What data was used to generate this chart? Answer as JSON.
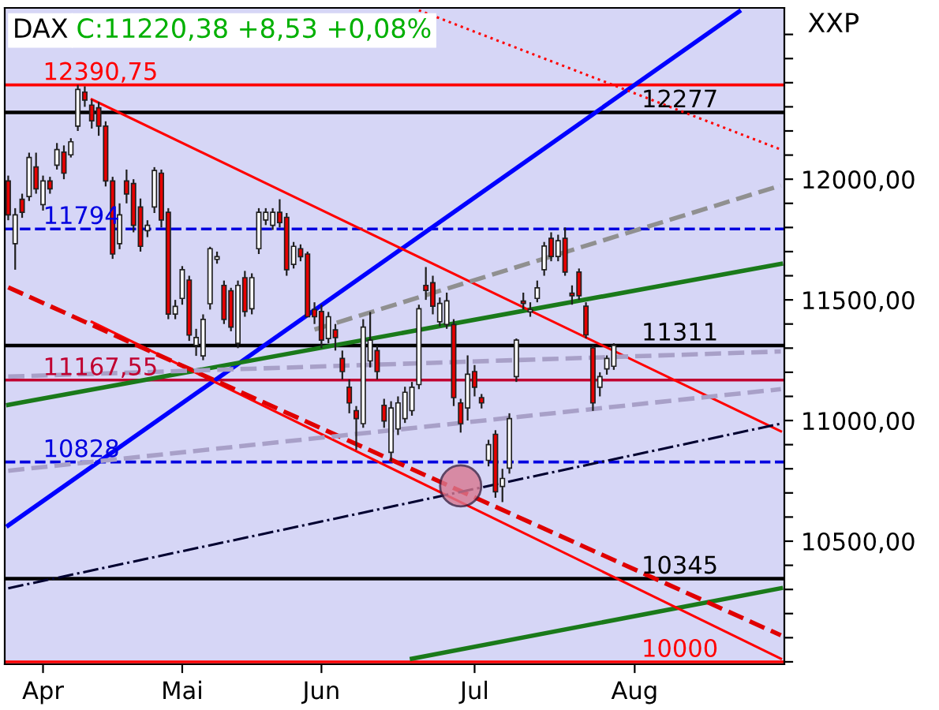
{
  "chart_data": {
    "type": "candlestick",
    "title": "DAX",
    "subtitle": "C:11220,38 +8,53 +0,08%",
    "annotations": [
      "XXP"
    ],
    "categories": [
      null,
      null,
      null,
      null,
      null,
      "Apr",
      null,
      null,
      null,
      null,
      null,
      null,
      null,
      null,
      null,
      null,
      null,
      null,
      null,
      null,
      null,
      null,
      null,
      null,
      null,
      "Mai",
      null,
      null,
      null,
      null,
      null,
      null,
      null,
      null,
      null,
      null,
      null,
      null,
      null,
      null,
      null,
      null,
      null,
      null,
      null,
      "Jun",
      null,
      null,
      null,
      null,
      null,
      null,
      null,
      null,
      null,
      null,
      null,
      null,
      null,
      null,
      null,
      null,
      null,
      null,
      null,
      null,
      null,
      "Jul",
      null,
      null,
      null,
      null,
      null,
      null,
      null,
      null,
      null,
      null,
      null,
      null,
      null,
      null,
      null,
      null,
      null,
      null,
      null,
      null,
      null,
      null,
      "Aug",
      null,
      null,
      null,
      null,
      null,
      null,
      null,
      null,
      null,
      null,
      null,
      null,
      null,
      null,
      null,
      null,
      null,
      null,
      null,
      null,
      null
    ],
    "ohlc": [
      [
        11993,
        12015,
        11830,
        11852
      ],
      [
        11733,
        11880,
        11625,
        11852
      ],
      [
        11917,
        11940,
        11840,
        11863
      ],
      [
        11928,
        12110,
        11910,
        12090
      ],
      [
        12051,
        12110,
        11940,
        11960
      ],
      [
        11895,
        12015,
        11870,
        11993
      ],
      [
        11993,
        12010,
        11940,
        11960
      ],
      [
        12058,
        12150,
        12040,
        12123
      ],
      [
        12112,
        12140,
        12000,
        12025
      ],
      [
        12101,
        12170,
        12090,
        12155
      ],
      [
        12220,
        12390.75,
        12200,
        12372
      ],
      [
        12361,
        12385,
        12300,
        12328
      ],
      [
        12307,
        12330,
        12210,
        12242
      ],
      [
        12296,
        12320,
        12180,
        12220
      ],
      [
        12220,
        12240,
        11970,
        11993
      ],
      [
        11993,
        12010,
        11670,
        11690
      ],
      [
        11733,
        11900,
        11710,
        11852
      ],
      [
        11993,
        12040,
        11900,
        11939
      ],
      [
        11982,
        12000,
        11780,
        11809
      ],
      [
        11885,
        11920,
        11700,
        11722
      ],
      [
        11787,
        11830,
        11760,
        11809
      ],
      [
        11885,
        12050,
        11860,
        12036
      ],
      [
        12025,
        12040,
        11800,
        11831
      ],
      [
        11863,
        11880,
        11420,
        11441
      ],
      [
        11441,
        11500,
        11420,
        11473
      ],
      [
        11506,
        11640,
        11480,
        11625
      ],
      [
        11582,
        11600,
        11330,
        11354
      ],
      [
        11311,
        11380,
        11268,
        11344
      ],
      [
        11268,
        11440,
        11250,
        11419
      ],
      [
        11484,
        11720,
        11460,
        11712
      ],
      [
        11668,
        11700,
        11650,
        11679
      ],
      [
        11560,
        11580,
        11400,
        11419
      ],
      [
        11538,
        11550,
        11370,
        11387
      ],
      [
        11320,
        11580,
        11300,
        11560
      ],
      [
        11592,
        11620,
        11430,
        11452
      ],
      [
        11463,
        11610,
        11440,
        11592
      ],
      [
        11712,
        11880,
        11690,
        11863
      ],
      [
        11831,
        11880,
        11810,
        11863
      ],
      [
        11809,
        11880,
        11790,
        11863
      ],
      [
        11863,
        11917,
        11800,
        11820
      ],
      [
        11842,
        11860,
        11600,
        11625
      ],
      [
        11647,
        11740,
        11630,
        11722
      ],
      [
        11712,
        11730,
        11660,
        11679
      ],
      [
        11690,
        11700,
        11430,
        11430
      ],
      [
        11460,
        11490,
        11400,
        11430
      ],
      [
        11452,
        11480,
        11300,
        11333
      ],
      [
        11340,
        11450,
        11320,
        11430
      ],
      [
        11376,
        11400,
        11290,
        11344
      ],
      [
        11257,
        11290,
        11170,
        11203
      ],
      [
        11138,
        11170,
        11030,
        11073
      ],
      [
        11041,
        11060,
        10878,
        11008
      ],
      [
        10987,
        11420,
        10970,
        11387
      ],
      [
        11247,
        11450,
        11220,
        11333
      ],
      [
        11290,
        11310,
        11170,
        11203
      ],
      [
        11063,
        11090,
        10970,
        10998
      ],
      [
        10868,
        11080,
        10830,
        11052
      ],
      [
        10965,
        11100,
        10940,
        11073
      ],
      [
        11008,
        11140,
        10990,
        11117
      ],
      [
        11041,
        11160,
        11020,
        11138
      ],
      [
        11149,
        11480,
        11130,
        11463
      ],
      [
        11560,
        11636,
        11500,
        11539
      ],
      [
        11571,
        11600,
        11440,
        11474
      ],
      [
        11409,
        11510,
        11390,
        11485
      ],
      [
        11398,
        11530,
        11380,
        11496
      ],
      [
        11398,
        11420,
        11060,
        11095
      ],
      [
        11073,
        11090,
        10950,
        10987
      ],
      [
        11052,
        11270,
        11000,
        11192
      ],
      [
        11203,
        11230,
        11100,
        11138
      ],
      [
        11095,
        11110,
        11050,
        11073
      ],
      [
        10835,
        10920,
        10810,
        10900
      ],
      [
        10943,
        10960,
        10680,
        10705
      ],
      [
        10727,
        10800,
        10662,
        10760
      ],
      [
        10803,
        11030,
        10780,
        11008
      ],
      [
        11182,
        11340,
        11160,
        11333
      ],
      [
        11495,
        11530,
        11460,
        11485
      ],
      [
        11450,
        11490,
        11430,
        11460
      ],
      [
        11506,
        11580,
        11490,
        11550
      ],
      [
        11625,
        11740,
        11600,
        11723
      ],
      [
        11755,
        11780,
        11660,
        11680
      ],
      [
        11680,
        11770,
        11660,
        11745
      ],
      [
        11755,
        11800,
        11600,
        11615
      ],
      [
        11528,
        11560,
        11480,
        11517
      ],
      [
        11615,
        11630,
        11500,
        11517
      ],
      [
        11474,
        11490,
        11340,
        11355
      ],
      [
        11301,
        11310,
        11040,
        11073
      ],
      [
        11138,
        11200,
        11100,
        11182
      ],
      [
        11214,
        11270,
        11190,
        11257
      ],
      [
        11225,
        11320,
        11210,
        11311
      ],
      null,
      null,
      null,
      null,
      null,
      null,
      null,
      null,
      null,
      null,
      null,
      null,
      null,
      null,
      null,
      null,
      null,
      null,
      null,
      null,
      null,
      null,
      null,
      null
    ],
    "colors": [
      "#e60000",
      "#ffffff",
      "#e60000",
      "#ffffff",
      "#e60000",
      "#ffffff",
      "#e60000",
      "#ffffff",
      "#e60000",
      "#ffffff",
      "#ffffff",
      "#e60000",
      "#e60000",
      "#e60000",
      "#e60000",
      "#e60000",
      "#ffffff",
      "#e60000",
      "#e60000",
      "#e60000",
      "#ffffff",
      "#ffffff",
      "#e60000",
      "#e60000",
      "#ffffff",
      "#ffffff",
      "#e60000",
      "#ffffff",
      "#ffffff",
      "#ffffff",
      "#ffffff",
      "#e60000",
      "#e60000",
      "#ffffff",
      "#e60000",
      "#ffffff",
      "#ffffff",
      "#ffffff",
      "#ffffff",
      "#e60000",
      "#e60000",
      "#ffffff",
      "#e60000",
      "#e60000",
      "#e60000",
      "#e60000",
      "#ffffff",
      "#e60000",
      "#e60000",
      "#e60000",
      "#e60000",
      "#ffffff",
      "#ffffff",
      "#e60000",
      "#e60000",
      "#ffffff",
      "#ffffff",
      "#ffffff",
      "#ffffff",
      "#ffffff",
      "#e60000",
      "#e60000",
      "#ffffff",
      "#ffffff",
      "#e60000",
      "#e60000",
      "#ffffff",
      "#e60000",
      "#e60000",
      "#ffffff",
      "#e60000",
      "#ffffff",
      "#ffffff",
      "#ffffff",
      "#e60000",
      "#ffffff",
      "#ffffff",
      "#ffffff",
      "#e60000",
      "#ffffff",
      "#e60000",
      "#e60000",
      "#e60000",
      "#e60000",
      "#e60000",
      "#ffffff",
      "#ffffff",
      "#ffffff",
      null,
      null,
      null,
      null,
      null,
      null,
      null,
      null,
      null,
      null,
      null,
      null,
      null,
      null,
      null,
      null,
      null,
      null,
      null,
      null,
      null,
      null,
      null,
      null
    ],
    "series": [
      {
        "type": "line",
        "values": [
          10565,
          null,
          null,
          null,
          null,
          null,
          null,
          null,
          null,
          null,
          null,
          null,
          null,
          null,
          null,
          null,
          null,
          null,
          null,
          null,
          null,
          null,
          null,
          null,
          null,
          null,
          null,
          null,
          null,
          null,
          null,
          null,
          null,
          null,
          null,
          null,
          null,
          null,
          null,
          null,
          null,
          null,
          null,
          null,
          null,
          null,
          null,
          null,
          null,
          null,
          null,
          null,
          null,
          null,
          null,
          null,
          null,
          null,
          null,
          null,
          null,
          null,
          null,
          null,
          null,
          null,
          null,
          null,
          null,
          null,
          null,
          null,
          null,
          null,
          null,
          null,
          null,
          null,
          null,
          null,
          null,
          null,
          null,
          null,
          null,
          null,
          null,
          null,
          null,
          null,
          null,
          null,
          null,
          null,
          null,
          null,
          null,
          null,
          null,
          null,
          null,
          null,
          null,
          null,
          null,
          12695,
          null,
          null,
          null,
          null,
          null,
          null
        ],
        "color": "#0000ff",
        "line_style": "solid"
      },
      {
        "type": "line",
        "values": [
          11065,
          null,
          null,
          null,
          null,
          null,
          null,
          null,
          null,
          null,
          null,
          null,
          null,
          null,
          null,
          null,
          null,
          null,
          null,
          null,
          null,
          null,
          null,
          null,
          null,
          null,
          null,
          null,
          null,
          null,
          null,
          null,
          null,
          null,
          null,
          null,
          null,
          null,
          null,
          null,
          null,
          null,
          null,
          null,
          null,
          null,
          null,
          null,
          null,
          null,
          null,
          null,
          null,
          null,
          null,
          null,
          null,
          null,
          null,
          null,
          null,
          null,
          null,
          null,
          null,
          null,
          null,
          null,
          null,
          null,
          null,
          null,
          null,
          null,
          null,
          null,
          null,
          null,
          null,
          null,
          null,
          null,
          null,
          null,
          null,
          null,
          null,
          null,
          null,
          null,
          null,
          null,
          null,
          null,
          null,
          null,
          null,
          null,
          null,
          null,
          null,
          null,
          null,
          null,
          null,
          null,
          null,
          null,
          null,
          null,
          null,
          11649
        ],
        "color": "#1a7a1a",
        "line_style": "solid"
      },
      {
        "type": "line",
        "values": [
          null,
          null,
          null,
          null,
          null,
          null,
          null,
          null,
          null,
          null,
          null,
          null,
          null,
          null,
          null,
          null,
          null,
          null,
          null,
          null,
          null,
          null,
          null,
          null,
          null,
          null,
          null,
          null,
          null,
          null,
          null,
          null,
          null,
          null,
          null,
          null,
          null,
          null,
          null,
          null,
          null,
          null,
          null,
          null,
          null,
          null,
          null,
          null,
          null,
          null,
          null,
          null,
          null,
          null,
          null,
          null,
          null,
          null,
          10013,
          null,
          null,
          null,
          null,
          null,
          null,
          null,
          null,
          null,
          null,
          null,
          null,
          null,
          null,
          null,
          null,
          null,
          null,
          null,
          null,
          null,
          null,
          null,
          null,
          null,
          null,
          null,
          null,
          null,
          null,
          null,
          null,
          null,
          null,
          null,
          null,
          null,
          null,
          null,
          null,
          null,
          null,
          null,
          null,
          null,
          null,
          null,
          null,
          null,
          null,
          null,
          null,
          10305
        ],
        "color": "#1a7a1a",
        "line_style": "solid"
      },
      {
        "type": "line",
        "values": [
          null,
          null,
          null,
          null,
          null,
          null,
          null,
          null,
          null,
          null,
          null,
          null,
          12331,
          null,
          null,
          null,
          null,
          null,
          null,
          null,
          null,
          null,
          null,
          null,
          null,
          null,
          null,
          null,
          null,
          null,
          null,
          null,
          null,
          null,
          null,
          null,
          null,
          null,
          null,
          null,
          null,
          null,
          null,
          null,
          null,
          null,
          null,
          null,
          null,
          null,
          null,
          null,
          null,
          null,
          null,
          null,
          null,
          null,
          null,
          null,
          null,
          null,
          null,
          null,
          null,
          null,
          null,
          null,
          null,
          null,
          null,
          null,
          null,
          null,
          null,
          null,
          null,
          null,
          null,
          null,
          null,
          null,
          null,
          null,
          null,
          null,
          null,
          null,
          null,
          null,
          null,
          null,
          null,
          null,
          null,
          null,
          null,
          null,
          null,
          null,
          null,
          null,
          null,
          null,
          null,
          null,
          null,
          null,
          null,
          null,
          null,
          10955
        ],
        "color": "#ff0000",
        "line_style": "solid"
      },
      {
        "type": "line",
        "values": [
          null,
          null,
          null,
          null,
          null,
          null,
          null,
          null,
          null,
          null,
          null,
          null,
          11409,
          null,
          null,
          null,
          null,
          null,
          null,
          null,
          null,
          null,
          null,
          null,
          null,
          null,
          null,
          null,
          null,
          null,
          null,
          null,
          null,
          null,
          null,
          null,
          null,
          null,
          null,
          null,
          null,
          null,
          null,
          null,
          null,
          null,
          null,
          null,
          null,
          null,
          null,
          null,
          null,
          null,
          null,
          null,
          null,
          null,
          null,
          null,
          null,
          null,
          null,
          null,
          null,
          null,
          null,
          null,
          null,
          null,
          null,
          null,
          null,
          null,
          null,
          null,
          null,
          null,
          null,
          null,
          null,
          null,
          null,
          null,
          null,
          null,
          null,
          null,
          null,
          null,
          null,
          null,
          null,
          null,
          null,
          null,
          null,
          null,
          null,
          null,
          null,
          null,
          null,
          null,
          null,
          null,
          null,
          null,
          null,
          null,
          null,
          10013
        ],
        "color": "#ff0000",
        "line_style": "solid"
      },
      {
        "type": "line",
        "values": [
          11552,
          null,
          null,
          null,
          null,
          null,
          null,
          null,
          null,
          null,
          null,
          null,
          null,
          null,
          null,
          null,
          null,
          null,
          null,
          null,
          null,
          null,
          null,
          null,
          null,
          null,
          null,
          null,
          null,
          null,
          null,
          null,
          null,
          null,
          null,
          null,
          null,
          null,
          null,
          null,
          null,
          null,
          null,
          null,
          null,
          null,
          null,
          null,
          null,
          null,
          null,
          null,
          null,
          null,
          null,
          null,
          null,
          null,
          null,
          null,
          null,
          null,
          null,
          null,
          null,
          null,
          null,
          null,
          null,
          null,
          null,
          null,
          null,
          null,
          null,
          null,
          null,
          null,
          null,
          null,
          null,
          null,
          null,
          null,
          null,
          null,
          null,
          null,
          null,
          null,
          null,
          null,
          null,
          null,
          null,
          null,
          null,
          null,
          null,
          null,
          null,
          null,
          null,
          null,
          null,
          null,
          null,
          null,
          null,
          null,
          null,
          10110
        ],
        "color": "#e00000",
        "line_style": "dashed"
      },
      {
        "type": "line",
        "values": [
          null,
          null,
          null,
          null,
          null,
          null,
          null,
          null,
          null,
          null,
          null,
          null,
          null,
          null,
          null,
          null,
          null,
          null,
          null,
          null,
          null,
          null,
          null,
          null,
          null,
          null,
          null,
          null,
          null,
          null,
          null,
          null,
          null,
          null,
          null,
          null,
          null,
          null,
          null,
          null,
          null,
          null,
          null,
          null,
          null,
          null,
          null,
          null,
          null,
          null,
          null,
          null,
          null,
          null,
          null,
          null,
          null,
          null,
          null,
          12700,
          null,
          null,
          null,
          null,
          null,
          null,
          null,
          null,
          null,
          null,
          null,
          null,
          null,
          null,
          null,
          null,
          null,
          null,
          null,
          null,
          null,
          null,
          null,
          null,
          null,
          null,
          null,
          null,
          null,
          null,
          null,
          null,
          null,
          null,
          null,
          null,
          null,
          null,
          null,
          null,
          null,
          null,
          null,
          null,
          null,
          null,
          null,
          null,
          null,
          null,
          null,
          12123
        ],
        "color": "#ff0000",
        "line_style": "dotted"
      },
      {
        "type": "line",
        "values": [
          null,
          null,
          null,
          null,
          null,
          null,
          null,
          null,
          null,
          null,
          null,
          null,
          null,
          null,
          null,
          null,
          null,
          null,
          null,
          null,
          null,
          null,
          null,
          null,
          null,
          null,
          null,
          null,
          null,
          null,
          null,
          null,
          null,
          null,
          null,
          null,
          null,
          null,
          null,
          null,
          null,
          null,
          null,
          null,
          11377,
          null,
          null,
          null,
          null,
          null,
          null,
          null,
          null,
          null,
          null,
          null,
          null,
          null,
          null,
          null,
          null,
          null,
          null,
          null,
          null,
          null,
          null,
          null,
          null,
          null,
          null,
          null,
          null,
          null,
          null,
          null,
          null,
          null,
          null,
          null,
          null,
          null,
          null,
          null,
          null,
          null,
          null,
          null,
          null,
          null,
          null,
          null,
          null,
          null,
          null,
          null,
          null,
          null,
          null,
          null,
          null,
          null,
          null,
          null,
          null,
          null,
          null,
          null,
          null,
          null,
          null,
          11974
        ],
        "color": "#909090",
        "line_style": "dashed"
      },
      {
        "type": "line",
        "values": [
          11182,
          null,
          null,
          null,
          null,
          null,
          null,
          null,
          null,
          null,
          null,
          null,
          null,
          null,
          null,
          null,
          null,
          null,
          null,
          null,
          null,
          null,
          null,
          null,
          null,
          null,
          null,
          null,
          null,
          null,
          null,
          null,
          null,
          null,
          null,
          null,
          null,
          null,
          null,
          null,
          null,
          null,
          null,
          null,
          null,
          null,
          null,
          null,
          null,
          null,
          null,
          null,
          null,
          null,
          null,
          null,
          null,
          null,
          null,
          null,
          null,
          null,
          null,
          null,
          null,
          null,
          null,
          null,
          null,
          null,
          null,
          null,
          null,
          null,
          null,
          null,
          null,
          null,
          null,
          null,
          null,
          null,
          null,
          null,
          null,
          null,
          null,
          null,
          null,
          null,
          null,
          null,
          null,
          null,
          null,
          null,
          null,
          null,
          null,
          null,
          null,
          null,
          null,
          null,
          null,
          null,
          null,
          null,
          null,
          null,
          null,
          11286
        ],
        "color": "#a8a0c8",
        "line_style": "dashed"
      },
      {
        "type": "line",
        "values": [
          10792,
          null,
          null,
          null,
          null,
          null,
          null,
          null,
          null,
          null,
          null,
          null,
          null,
          null,
          null,
          null,
          null,
          null,
          null,
          null,
          null,
          null,
          null,
          null,
          null,
          null,
          null,
          null,
          null,
          null,
          null,
          null,
          null,
          null,
          null,
          null,
          null,
          null,
          null,
          null,
          null,
          null,
          null,
          null,
          null,
          null,
          null,
          null,
          null,
          null,
          null,
          null,
          null,
          null,
          null,
          null,
          null,
          null,
          null,
          null,
          null,
          null,
          null,
          null,
          null,
          null,
          null,
          null,
          null,
          null,
          null,
          null,
          null,
          null,
          null,
          null,
          null,
          null,
          null,
          null,
          null,
          null,
          null,
          null,
          null,
          null,
          null,
          null,
          null,
          null,
          null,
          null,
          null,
          null,
          null,
          null,
          null,
          null,
          null,
          null,
          null,
          null,
          null,
          null,
          null,
          null,
          null,
          null,
          null,
          null,
          null,
          11130
        ],
        "color": "#a8a0c8",
        "line_style": "dashed"
      },
      {
        "type": "line",
        "values": [
          10305,
          null,
          null,
          null,
          null,
          null,
          null,
          null,
          null,
          null,
          null,
          null,
          null,
          null,
          null,
          null,
          null,
          null,
          null,
          null,
          null,
          null,
          null,
          null,
          null,
          null,
          null,
          null,
          null,
          null,
          null,
          null,
          null,
          null,
          null,
          null,
          null,
          null,
          null,
          null,
          null,
          null,
          null,
          null,
          null,
          null,
          null,
          null,
          null,
          null,
          null,
          null,
          null,
          null,
          null,
          null,
          null,
          null,
          null,
          null,
          null,
          null,
          null,
          null,
          null,
          null,
          null,
          null,
          null,
          null,
          null,
          null,
          null,
          null,
          null,
          null,
          null,
          null,
          null,
          null,
          null,
          null,
          null,
          null,
          null,
          null,
          null,
          null,
          null,
          null,
          null,
          null,
          null,
          null,
          null,
          null,
          null,
          null,
          null,
          null,
          null,
          null,
          null,
          null,
          null,
          null,
          null,
          null,
          null,
          null,
          null,
          10987
        ],
        "color": "#000030",
        "line_style": "dashdot"
      }
    ],
    "ref_lines": [
      {
        "axis": "y",
        "value": 12390.75,
        "label": "12390,75",
        "color": "#ff0000",
        "line_style": "solid"
      },
      {
        "axis": "y",
        "value": 12277,
        "label": "12277",
        "color": "#000000",
        "line_style": "solid"
      },
      {
        "axis": "y",
        "value": 11794,
        "label": "11794",
        "color": "#0000e0",
        "line_style": "dashed"
      },
      {
        "axis": "y",
        "value": 11311,
        "label": "11311",
        "color": "#000000",
        "line_style": "solid"
      },
      {
        "axis": "y",
        "value": 11167.55,
        "label": "11167,55",
        "color": "#c00030",
        "line_style": "solid"
      },
      {
        "axis": "y",
        "value": 10828,
        "label": "10828",
        "color": "#0000e0",
        "line_style": "dashed"
      },
      {
        "axis": "y",
        "value": 10345,
        "label": "10345",
        "color": "#000000",
        "line_style": "solid"
      },
      {
        "axis": "y",
        "value": 10000,
        "label": "10000",
        "color": "#ff0000",
        "line_style": "solid"
      }
    ],
    "ylim": [
      9990,
      12710
    ],
    "yticks": [
      {
        "value": 10000,
        "label": null
      },
      {
        "value": 10100,
        "label": null
      },
      {
        "value": 10200,
        "label": null
      },
      {
        "value": 10300,
        "label": null
      },
      {
        "value": 10400,
        "label": null
      },
      {
        "value": 10500,
        "label": "10500,00"
      },
      {
        "value": 10600,
        "label": null
      },
      {
        "value": 10700,
        "label": null
      },
      {
        "value": 10800,
        "label": null
      },
      {
        "value": 10900,
        "label": null
      },
      {
        "value": 11000,
        "label": "11000,00"
      },
      {
        "value": 11100,
        "label": null
      },
      {
        "value": 11200,
        "label": null
      },
      {
        "value": 11300,
        "label": null
      },
      {
        "value": 11400,
        "label": null
      },
      {
        "value": 11500,
        "label": "11500,00"
      },
      {
        "value": 11600,
        "label": null
      },
      {
        "value": 11700,
        "label": null
      },
      {
        "value": 11800,
        "label": null
      },
      {
        "value": 11900,
        "label": null
      },
      {
        "value": 12000,
        "label": "12000,00"
      },
      {
        "value": 12100,
        "label": null
      },
      {
        "value": 12200,
        "label": null
      },
      {
        "value": 12300,
        "label": null
      },
      {
        "value": 12400,
        "label": null
      },
      {
        "value": 12500,
        "label": null
      },
      {
        "value": 12600,
        "label": null
      }
    ],
    "grid": false,
    "legend": false
  }
}
